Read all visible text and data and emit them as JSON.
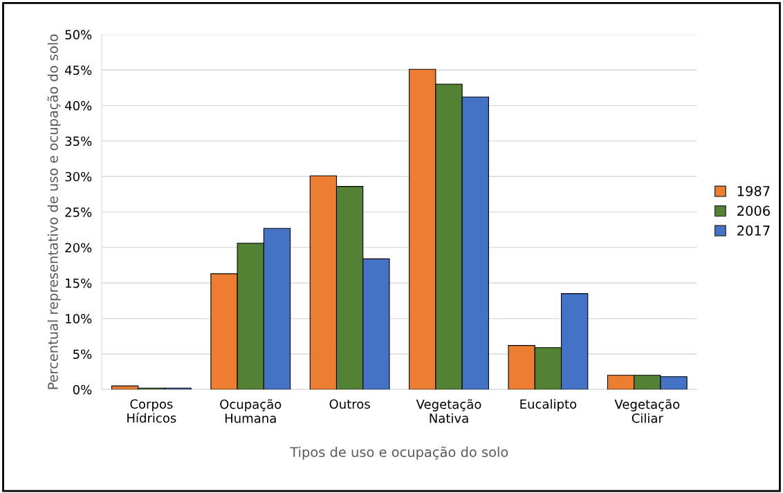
{
  "chart_data": {
    "type": "bar",
    "xlabel": "Tipos de uso e ocupação do solo",
    "ylabel": "Percentual representativo de uso e ocupação do solo",
    "categories": [
      "Corpos\nHídricos",
      "Ocupação\nHumana",
      "Outros",
      "Vegetação\nNativa",
      "Eucalipto",
      "Vegetação\nCiliar"
    ],
    "series": [
      {
        "name": "1987",
        "color": "#ed7d31",
        "values": [
          0.5,
          16.3,
          30.1,
          45.1,
          6.2,
          2.0
        ]
      },
      {
        "name": "2006",
        "color": "#548235",
        "values": [
          0.2,
          20.6,
          28.6,
          43.0,
          5.9,
          2.0
        ]
      },
      {
        "name": "2017",
        "color": "#4472c4",
        "values": [
          0.2,
          22.7,
          18.4,
          41.2,
          13.5,
          1.8
        ]
      }
    ],
    "ylim": [
      0,
      50
    ],
    "yticks": [
      {
        "value": 0,
        "label": "0%"
      },
      {
        "value": 5,
        "label": "5%"
      },
      {
        "value": 10,
        "label": "10%"
      },
      {
        "value": 15,
        "label": "15%"
      },
      {
        "value": 20,
        "label": "20%"
      },
      {
        "value": 25,
        "label": "25%"
      },
      {
        "value": 30,
        "label": "30%"
      },
      {
        "value": 35,
        "label": "35%"
      },
      {
        "value": 40,
        "label": "40%"
      },
      {
        "value": 45,
        "label": "45%"
      },
      {
        "value": 50,
        "label": "50%"
      }
    ],
    "grid": "y",
    "legend": "right"
  }
}
